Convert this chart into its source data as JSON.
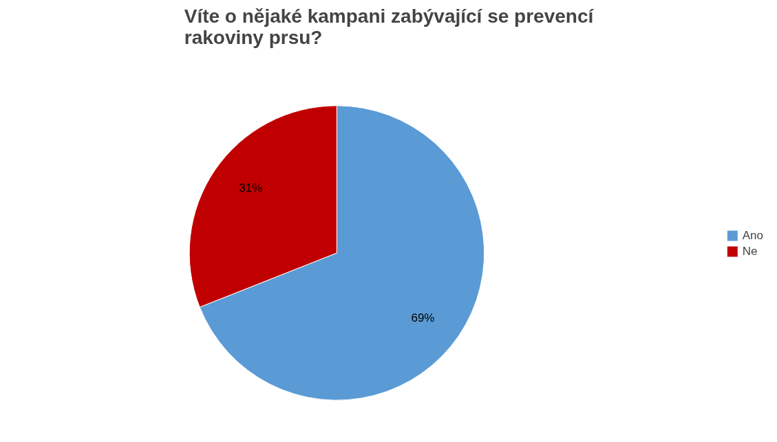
{
  "chart_data": {
    "type": "pie",
    "title": "Víte o nějaké kampani zabývající se prevencí\nrakoviny prsu?",
    "categories": [
      "Ano",
      "Ne"
    ],
    "values": [
      69,
      31
    ],
    "colors": [
      "#5b9bd5",
      "#c00000"
    ],
    "value_labels": [
      "69%",
      "31%"
    ],
    "legend": "right"
  }
}
